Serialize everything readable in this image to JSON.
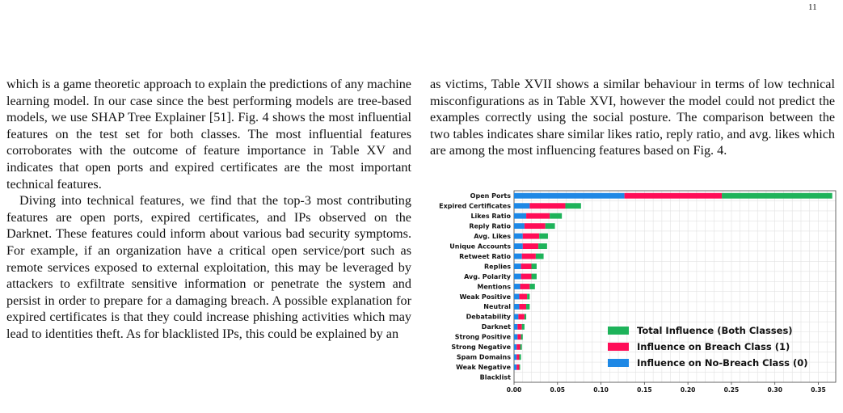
{
  "page_number": "11",
  "left_column": [
    "which is a game theoretic approach to explain the predictions of any machine learning model. In our case since the best performing models are tree-based models, we use SHAP Tree Explainer [51]. Fig. 4 shows the most influential features on the test set for both classes. The most influential features corroborates with the outcome of feature importance in Table XV and indicates that open ports and expired certificates are the most important technical features.",
    "Diving into technical features, we find that the top-3 most contributing features are open ports, expired certificates, and IPs observed on the Darknet. These features could inform about various bad security symptoms. For example, if an organization have a critical open service/port such as remote services exposed to external exploitation, this may be leveraged by attackers to exfiltrate sensitive information or penetrate the system and persist in order to prepare for a damaging breach. A possible explanation for expired certificates is that they could increase phishing activities which may lead to identities theft. As for blacklisted IPs, this could be explained by an"
  ],
  "right_column": [
    "as victims, Table XVII shows a similar behaviour in terms of low technical misconfigurations as in Table XVI, however the model could not predict the examples correctly using the social posture. The comparison between the two tables indicates share similar likes ratio, reply ratio, and avg. likes which are among the most influencing features based on Fig. 4."
  ],
  "chart_data": {
    "type": "bar",
    "orientation": "horizontal",
    "stacked": true,
    "categories": [
      "Open Ports",
      "Expired Certificates",
      "Likes Ratio",
      "Reply Ratio",
      "Avg. Likes",
      "Unique Accounts",
      "Retweet Ratio",
      "Replies",
      "Avg. Polarity",
      "Mentions",
      "Weak Positive",
      "Neutral",
      "Debatability",
      "Darknet",
      "Strong Positive",
      "Strong Negative",
      "Spam Domains",
      "Weak Negative",
      "Blacklist"
    ],
    "series": [
      {
        "name": "Influence on No-Breach Class (0)",
        "color": "#1e88e5",
        "values": [
          0.127,
          0.018,
          0.014,
          0.012,
          0.01,
          0.01,
          0.009,
          0.008,
          0.008,
          0.007,
          0.006,
          0.006,
          0.005,
          0.004,
          0.004,
          0.003,
          0.003,
          0.003,
          0.0
        ]
      },
      {
        "name": "Influence on Breach Class (1)",
        "color": "#ff0d57",
        "values": [
          0.112,
          0.041,
          0.027,
          0.024,
          0.019,
          0.018,
          0.016,
          0.012,
          0.012,
          0.011,
          0.009,
          0.008,
          0.007,
          0.005,
          0.004,
          0.004,
          0.003,
          0.003,
          0.0
        ]
      },
      {
        "name": "Total Influence (Both Classes)",
        "color": "#1eb35a",
        "values": [
          0.127,
          0.018,
          0.014,
          0.011,
          0.01,
          0.01,
          0.009,
          0.006,
          0.006,
          0.006,
          0.003,
          0.004,
          0.002,
          0.003,
          0.002,
          0.002,
          0.002,
          0.001,
          0.0
        ]
      }
    ],
    "xlim": [
      0,
      0.37
    ],
    "xticks": [
      "0.00",
      "0.05",
      "0.10",
      "0.15",
      "0.20",
      "0.25",
      "0.30",
      "0.35"
    ],
    "grid": true,
    "legend_position": "lower right"
  }
}
